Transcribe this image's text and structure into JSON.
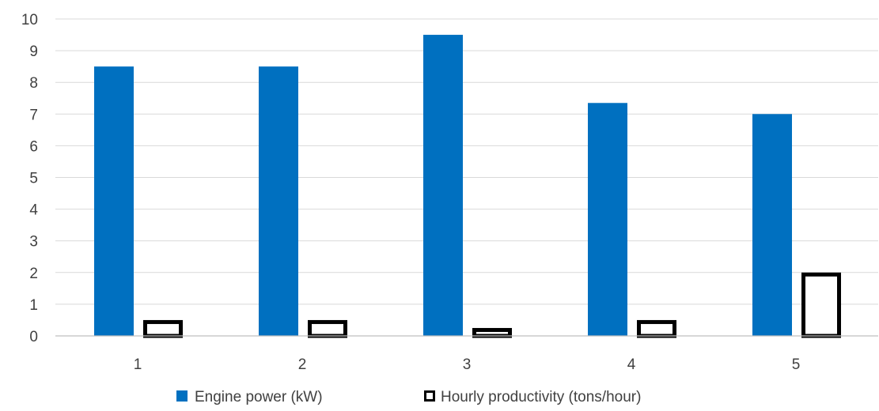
{
  "chart_data": {
    "type": "bar",
    "title": "",
    "xlabel": "",
    "ylabel": "",
    "categories": [
      "1",
      "2",
      "3",
      "4",
      "5"
    ],
    "series": [
      {
        "name": "Engine power (kW)",
        "values": [
          8.5,
          8.5,
          9.5,
          7.35,
          7.0
        ],
        "color": "#0070c0",
        "style": "filled"
      },
      {
        "name": "Hourly productivity (tons/hour)",
        "values": [
          0.5,
          0.5,
          0.25,
          0.5,
          2.0
        ],
        "color": "#000000",
        "style": "outline"
      }
    ],
    "ylim": [
      0,
      10
    ],
    "yticks": [
      "0",
      "1",
      "2",
      "3",
      "4",
      "5",
      "6",
      "7",
      "8",
      "9",
      "10"
    ],
    "grid": true,
    "legend_position": "bottom"
  }
}
